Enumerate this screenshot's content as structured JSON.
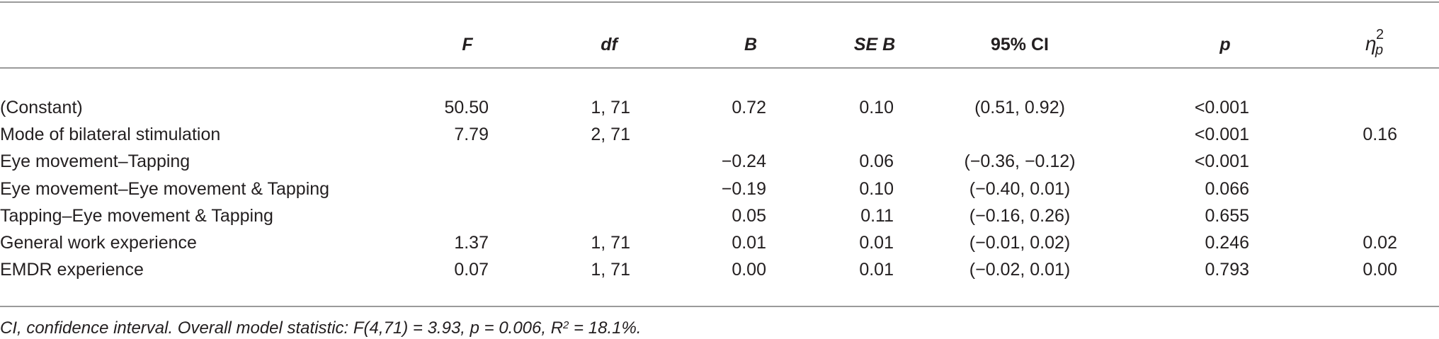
{
  "table": {
    "headers": {
      "F": "F",
      "df": "df",
      "B": "B",
      "SEB": "SE B",
      "CI": "95% CI",
      "p": "p",
      "eta_base": "η",
      "eta_sup": "2",
      "eta_sub": "p"
    },
    "rows": [
      {
        "label": "(Constant)",
        "F": "50.50",
        "df": "1, 71",
        "B": "0.72",
        "SEB": "0.10",
        "CI": "(0.51, 0.92)",
        "p": "<0.001",
        "eta": ""
      },
      {
        "label": "Mode of bilateral stimulation",
        "F": "7.79",
        "df": "2, 71",
        "B": "",
        "SEB": "",
        "CI": "",
        "p": "<0.001",
        "eta": "0.16"
      },
      {
        "label": "Eye movement–Tapping",
        "F": "",
        "df": "",
        "B": "−0.24",
        "SEB": "0.06",
        "CI": "(−0.36, −0.12)",
        "p": "<0.001",
        "eta": ""
      },
      {
        "label": "Eye movement–Eye movement & Tapping",
        "F": "",
        "df": "",
        "B": "−0.19",
        "SEB": "0.10",
        "CI": "(−0.40, 0.01)",
        "p": "0.066",
        "eta": ""
      },
      {
        "label": "Tapping–Eye movement & Tapping",
        "F": "",
        "df": "",
        "B": "0.05",
        "SEB": "0.11",
        "CI": "(−0.16, 0.26)",
        "p": "0.655",
        "eta": ""
      },
      {
        "label": "General work experience",
        "F": "1.37",
        "df": "1, 71",
        "B": "0.01",
        "SEB": "0.01",
        "CI": "(−0.01, 0.02)",
        "p": "0.246",
        "eta": "0.02"
      },
      {
        "label": "EMDR experience",
        "F": "0.07",
        "df": "1, 71",
        "B": "0.00",
        "SEB": "0.01",
        "CI": "(−0.02, 0.01)",
        "p": "0.793",
        "eta": "0.00"
      }
    ]
  },
  "footnote": {
    "main": "CI, confidence interval. Overall model statistic: F(4,71) = 3.93, p = 0.006, R",
    "sup": "2",
    "end": " = 18.1%."
  }
}
